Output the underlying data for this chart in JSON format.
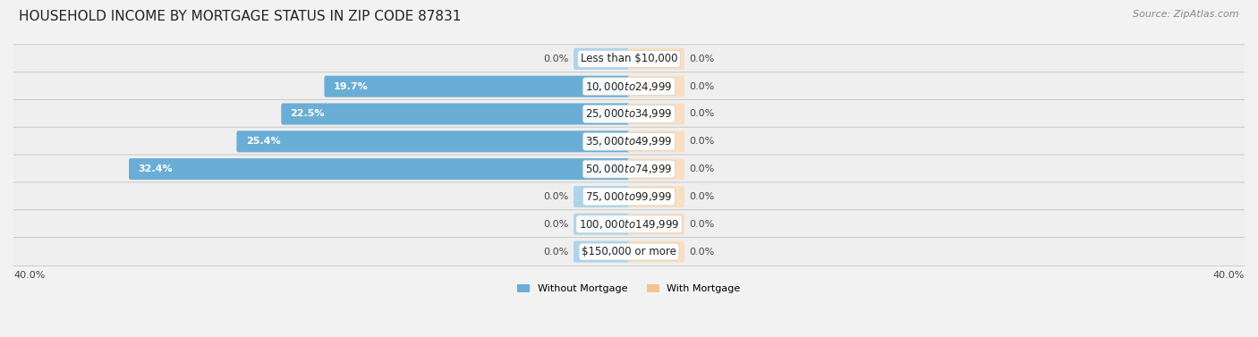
{
  "title": "HOUSEHOLD INCOME BY MORTGAGE STATUS IN ZIP CODE 87831",
  "source": "Source: ZipAtlas.com",
  "categories": [
    "Less than $10,000",
    "$10,000 to $24,999",
    "$25,000 to $34,999",
    "$35,000 to $49,999",
    "$50,000 to $74,999",
    "$75,000 to $99,999",
    "$100,000 to $149,999",
    "$150,000 or more"
  ],
  "without_mortgage": [
    0.0,
    19.7,
    22.5,
    25.4,
    32.4,
    0.0,
    0.0,
    0.0
  ],
  "with_mortgage": [
    0.0,
    0.0,
    0.0,
    0.0,
    0.0,
    0.0,
    0.0,
    0.0
  ],
  "color_without": "#6aaed6",
  "color_with": "#f4c48e",
  "color_without_light": "#aed4ec",
  "color_with_light": "#f9dfc0",
  "xlim": 40.0,
  "stub_size": 3.5,
  "legend_without": "Without Mortgage",
  "legend_with": "With Mortgage",
  "bar_height": 0.58,
  "row_bg_light": "#eeeeee",
  "row_bg_dark": "#e4e4e4",
  "title_fontsize": 11,
  "source_fontsize": 8,
  "label_fontsize": 8,
  "tick_label_fontsize": 8
}
